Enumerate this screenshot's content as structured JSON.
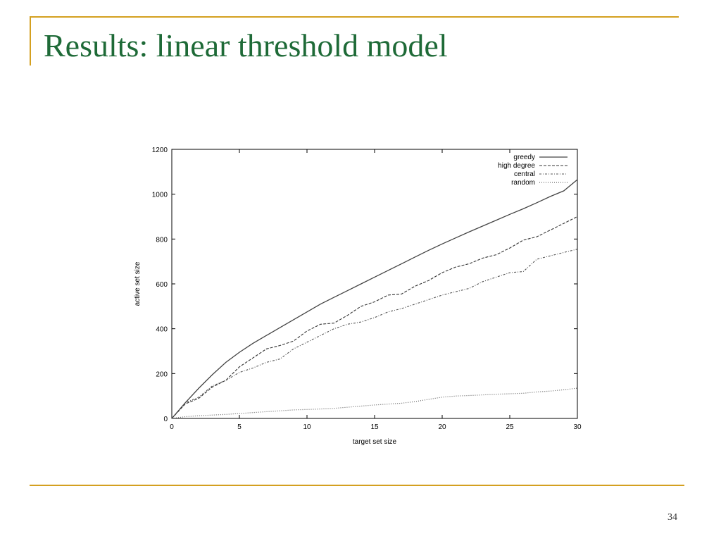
{
  "slide": {
    "title": "Results: linear threshold model",
    "page_number": "34"
  },
  "colors": {
    "accent": "#d4a020",
    "title": "#1e6a37"
  },
  "chart_data": {
    "type": "line",
    "xlabel": "target set size",
    "ylabel": "active set size",
    "xlim": [
      0,
      30
    ],
    "ylim": [
      0,
      1200
    ],
    "xticks": [
      0,
      5,
      10,
      15,
      20,
      25,
      30
    ],
    "yticks": [
      0,
      200,
      400,
      600,
      800,
      1000,
      1200
    ],
    "grid": false,
    "legend_position": "top-right",
    "x": [
      0,
      1,
      2,
      3,
      4,
      5,
      6,
      7,
      8,
      9,
      10,
      11,
      12,
      13,
      14,
      15,
      16,
      17,
      18,
      19,
      20,
      21,
      22,
      23,
      24,
      25,
      26,
      27,
      28,
      29,
      30
    ],
    "series": [
      {
        "name": "greedy",
        "style": "solid",
        "values": [
          0,
          70,
          135,
          195,
          250,
          295,
          335,
          370,
          405,
          440,
          475,
          510,
          540,
          570,
          600,
          630,
          660,
          690,
          720,
          750,
          778,
          805,
          832,
          858,
          884,
          910,
          935,
          962,
          990,
          1015,
          1065
        ]
      },
      {
        "name": "high degree",
        "style": "dashed",
        "values": [
          0,
          65,
          90,
          140,
          170,
          230,
          270,
          310,
          325,
          345,
          390,
          420,
          425,
          460,
          500,
          520,
          550,
          555,
          590,
          615,
          650,
          675,
          690,
          715,
          730,
          760,
          795,
          810,
          840,
          870,
          900
        ]
      },
      {
        "name": "central",
        "style": "dotted-dash",
        "values": [
          0,
          70,
          95,
          145,
          170,
          205,
          225,
          250,
          265,
          310,
          340,
          370,
          400,
          420,
          430,
          450,
          475,
          490,
          510,
          530,
          550,
          565,
          580,
          610,
          630,
          650,
          655,
          710,
          725,
          740,
          755
        ]
      },
      {
        "name": "random",
        "style": "dotted",
        "values": [
          0,
          8,
          12,
          15,
          18,
          22,
          26,
          30,
          34,
          38,
          40,
          42,
          45,
          50,
          55,
          60,
          64,
          68,
          75,
          85,
          95,
          100,
          102,
          105,
          108,
          110,
          112,
          118,
          122,
          128,
          135
        ]
      }
    ]
  }
}
